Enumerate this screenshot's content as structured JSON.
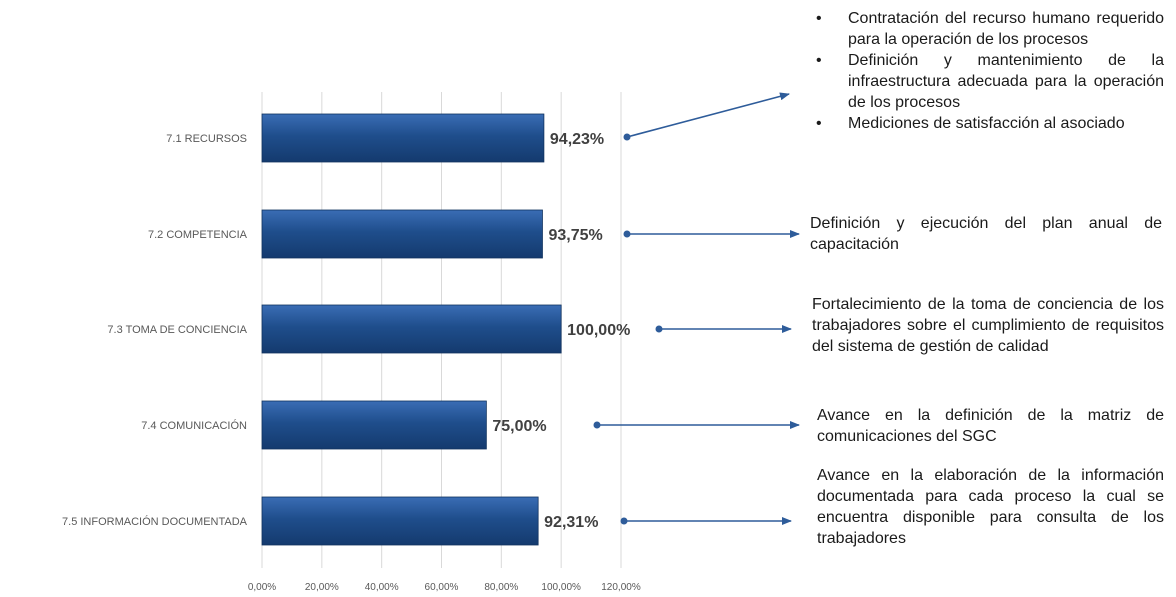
{
  "chart_data": {
    "type": "bar",
    "orientation": "horizontal",
    "categories": [
      "7.1 RECURSOS",
      "7.2 COMPETENCIA",
      "7.3 TOMA DE CONCIENCIA",
      "7.4 COMUNICACIÓN",
      "7.5 INFORMACIÓN DOCUMENTADA"
    ],
    "values": [
      94.23,
      93.75,
      100.0,
      75.0,
      92.31
    ],
    "data_labels": [
      "94,23%",
      "93,75%",
      "100,00%",
      "75,00%",
      "92,31%"
    ],
    "xlim": [
      0,
      120
    ],
    "x_ticks": [
      "0,00%",
      "20,00%",
      "40,00%",
      "60,00%",
      "80,00%",
      "100,00%",
      "120,00%"
    ],
    "grid": "vertical",
    "legend": "none",
    "bar_color": "#1F4E8C",
    "arrow_color": "#2E5C9A"
  },
  "annotations": {
    "recursos": [
      "Contratación del recurso humano requerido para la operación de los procesos",
      "Definición y mantenimiento de la infraestructura adecuada para la operación de los procesos",
      "Mediciones de satisfacción al asociado"
    ],
    "competencia": "Definición y ejecución del plan anual de capacitación",
    "toma_conciencia": "Fortalecimiento de la toma de conciencia de los trabajadores sobre el cumplimiento de requisitos del sistema de gestión de calidad",
    "comunicacion": "Avance en la definición de la matriz de comunicaciones del SGC",
    "informacion": "Avance en la elaboración de la información documentada para cada proceso la cual se encuentra disponible para consulta de los trabajadores"
  }
}
